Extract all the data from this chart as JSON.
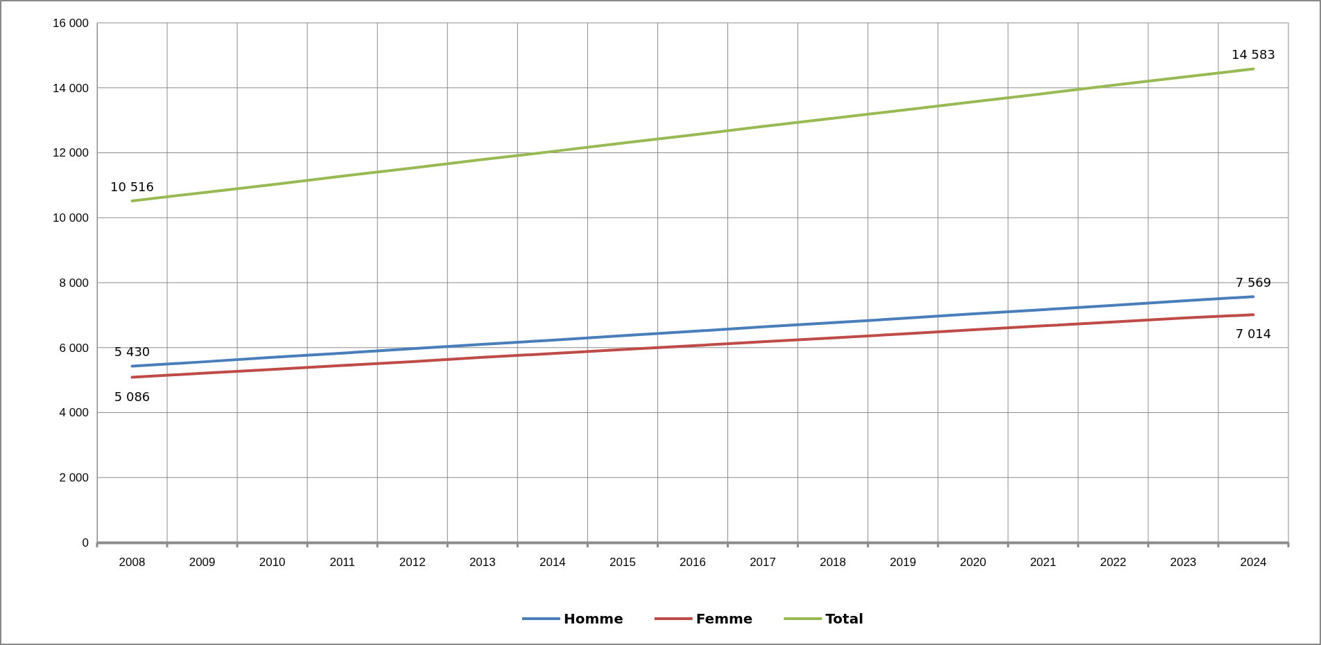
{
  "chart_data": {
    "type": "line",
    "categories": [
      "2008",
      "2009",
      "2010",
      "2011",
      "2012",
      "2013",
      "2014",
      "2015",
      "2016",
      "2017",
      "2018",
      "2019",
      "2020",
      "2021",
      "2022",
      "2023",
      "2024"
    ],
    "ylim": [
      0,
      16000
    ],
    "yticks": [
      0,
      {
        "value": 2000,
        "label": "2 000"
      },
      {
        "value": 4000,
        "label": "4 000"
      },
      {
        "value": 6000,
        "label": "6 000"
      },
      {
        "value": 8000,
        "label": "8 000"
      },
      {
        "value": 10000,
        "label": "10 000"
      },
      {
        "value": 12000,
        "label": "12 000"
      },
      {
        "value": 14000,
        "label": "14 000"
      },
      {
        "value": 16000,
        "label": "16 000"
      }
    ],
    "grid": true,
    "legend": "bottom",
    "marker": "none",
    "line_style": "solid",
    "series": [
      {
        "name": "Homme",
        "color": "#4a7ebb",
        "values": [
          5430,
          5560,
          5700,
          5830,
          5970,
          6100,
          6230,
          6370,
          6500,
          6640,
          6770,
          6900,
          7040,
          7170,
          7300,
          7440,
          7569
        ],
        "value_labels": [
          "5 430",
          null,
          null,
          null,
          null,
          null,
          null,
          null,
          null,
          null,
          null,
          null,
          null,
          null,
          null,
          null,
          "7 569"
        ]
      },
      {
        "name": "Femme",
        "color": "#be4b48",
        "values": [
          5086,
          5210,
          5330,
          5450,
          5570,
          5700,
          5820,
          5940,
          6060,
          6180,
          6300,
          6420,
          6550,
          6670,
          6790,
          6910,
          7014
        ],
        "value_labels": [
          "5 086",
          null,
          null,
          null,
          null,
          null,
          null,
          null,
          null,
          null,
          null,
          null,
          null,
          null,
          null,
          null,
          "7 014"
        ]
      },
      {
        "name": "Total",
        "color": "#98b954",
        "values": [
          10516,
          10770,
          11020,
          11280,
          11530,
          11790,
          12040,
          12300,
          12550,
          12810,
          13060,
          13310,
          13570,
          13820,
          14080,
          14330,
          14583
        ],
        "value_labels": [
          "10 516",
          null,
          null,
          null,
          null,
          null,
          null,
          null,
          null,
          null,
          null,
          null,
          null,
          null,
          null,
          null,
          "14 583"
        ]
      }
    ]
  }
}
